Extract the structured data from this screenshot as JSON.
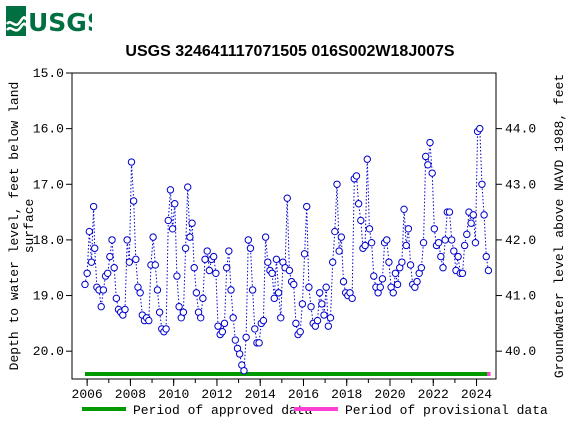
{
  "header": {
    "logo_text": "USGS",
    "title": "USGS 324641117071505 016S002W18J007S"
  },
  "colors": {
    "logo": "#006F41",
    "series": "#0000CC",
    "approved": "#009900",
    "provisional": "#FF3FD2"
  },
  "legend": {
    "approved_label": "Period of approved data",
    "provisional_label": "Period of provisional data"
  },
  "chart_data": {
    "type": "scatter",
    "title": "USGS 324641117071505 016S002W18J007S",
    "ylabel_left": [
      "Depth to water level, feet below land",
      "surface"
    ],
    "ylabel_right": "Groundwater level above NAVD 1988, feet",
    "xlim": [
      2005.3,
      2024.9
    ],
    "ylim_left": [
      20.5,
      15.0
    ],
    "left_ticks": [
      "15.0",
      "16.0",
      "17.0",
      "18.0",
      "19.0",
      "20.0"
    ],
    "right_ticks": [
      "44.0",
      "43.0",
      "42.0",
      "41.0",
      "40.0"
    ],
    "right_tick_depths": [
      16.0,
      17.0,
      18.0,
      19.0,
      20.0
    ],
    "x_ticks": [
      "2006",
      "2008",
      "2010",
      "2012",
      "2014",
      "2016",
      "2018",
      "2020",
      "2022",
      "2024"
    ],
    "grid": false,
    "approved_period": [
      2005.9,
      2024.5
    ],
    "provisional_period": [
      2024.5,
      2024.65
    ],
    "series": [
      {
        "style": "dotted line with circle markers",
        "points": [
          [
            2005.9,
            18.8
          ],
          [
            2006.0,
            18.6
          ],
          [
            2006.1,
            17.85
          ],
          [
            2006.2,
            18.4
          ],
          [
            2006.3,
            17.4
          ],
          [
            2006.35,
            18.15
          ],
          [
            2006.45,
            18.85
          ],
          [
            2006.55,
            18.9
          ],
          [
            2006.65,
            19.2
          ],
          [
            2006.75,
            18.9
          ],
          [
            2006.85,
            18.65
          ],
          [
            2006.95,
            18.6
          ],
          [
            2007.05,
            18.3
          ],
          [
            2007.15,
            18.0
          ],
          [
            2007.25,
            18.5
          ],
          [
            2007.35,
            19.05
          ],
          [
            2007.45,
            19.25
          ],
          [
            2007.55,
            19.3
          ],
          [
            2007.65,
            19.35
          ],
          [
            2007.75,
            19.25
          ],
          [
            2007.85,
            18.0
          ],
          [
            2007.95,
            18.4
          ],
          [
            2008.05,
            16.6
          ],
          [
            2008.15,
            17.3
          ],
          [
            2008.25,
            18.35
          ],
          [
            2008.35,
            18.85
          ],
          [
            2008.45,
            18.95
          ],
          [
            2008.55,
            19.35
          ],
          [
            2008.65,
            19.45
          ],
          [
            2008.75,
            19.4
          ],
          [
            2008.85,
            19.45
          ],
          [
            2008.95,
            18.45
          ],
          [
            2009.05,
            17.95
          ],
          [
            2009.15,
            18.45
          ],
          [
            2009.25,
            18.9
          ],
          [
            2009.35,
            19.3
          ],
          [
            2009.45,
            19.6
          ],
          [
            2009.55,
            19.65
          ],
          [
            2009.65,
            19.6
          ],
          [
            2009.75,
            17.65
          ],
          [
            2009.85,
            17.1
          ],
          [
            2009.95,
            17.8
          ],
          [
            2010.05,
            17.35
          ],
          [
            2010.15,
            18.65
          ],
          [
            2010.25,
            19.2
          ],
          [
            2010.35,
            19.4
          ],
          [
            2010.45,
            19.3
          ],
          [
            2010.55,
            18.15
          ],
          [
            2010.65,
            17.05
          ],
          [
            2010.75,
            17.95
          ],
          [
            2010.85,
            17.7
          ],
          [
            2010.95,
            18.5
          ],
          [
            2011.05,
            18.95
          ],
          [
            2011.15,
            19.3
          ],
          [
            2011.25,
            19.4
          ],
          [
            2011.35,
            19.05
          ],
          [
            2011.45,
            18.35
          ],
          [
            2011.55,
            18.2
          ],
          [
            2011.65,
            18.55
          ],
          [
            2011.75,
            18.35
          ],
          [
            2011.85,
            18.3
          ],
          [
            2011.95,
            18.6
          ],
          [
            2012.05,
            19.55
          ],
          [
            2012.15,
            19.7
          ],
          [
            2012.25,
            19.65
          ],
          [
            2012.35,
            19.5
          ],
          [
            2012.45,
            18.5
          ],
          [
            2012.55,
            18.2
          ],
          [
            2012.65,
            18.9
          ],
          [
            2012.75,
            19.4
          ],
          [
            2012.85,
            19.8
          ],
          [
            2012.95,
            19.95
          ],
          [
            2013.05,
            20.05
          ],
          [
            2013.15,
            20.25
          ],
          [
            2013.25,
            20.35
          ],
          [
            2013.35,
            19.75
          ],
          [
            2013.45,
            18.0
          ],
          [
            2013.55,
            18.15
          ],
          [
            2013.65,
            18.9
          ],
          [
            2013.75,
            19.6
          ],
          [
            2013.85,
            19.85
          ],
          [
            2013.95,
            19.85
          ],
          [
            2014.05,
            19.5
          ],
          [
            2014.15,
            19.45
          ],
          [
            2014.25,
            17.95
          ],
          [
            2014.35,
            18.4
          ],
          [
            2014.45,
            18.55
          ],
          [
            2014.55,
            18.6
          ],
          [
            2014.65,
            19.05
          ],
          [
            2014.75,
            18.35
          ],
          [
            2014.85,
            18.95
          ],
          [
            2014.95,
            19.4
          ],
          [
            2015.05,
            18.4
          ],
          [
            2015.15,
            18.5
          ],
          [
            2015.25,
            17.25
          ],
          [
            2015.35,
            18.55
          ],
          [
            2015.45,
            18.75
          ],
          [
            2015.55,
            18.8
          ],
          [
            2015.65,
            19.5
          ],
          [
            2015.75,
            19.7
          ],
          [
            2015.85,
            19.65
          ],
          [
            2015.95,
            19.15
          ],
          [
            2016.05,
            18.25
          ],
          [
            2016.15,
            17.4
          ],
          [
            2016.25,
            18.85
          ],
          [
            2016.35,
            19.2
          ],
          [
            2016.45,
            19.5
          ],
          [
            2016.55,
            19.55
          ],
          [
            2016.65,
            19.45
          ],
          [
            2016.75,
            18.95
          ],
          [
            2016.85,
            19.15
          ],
          [
            2016.95,
            19.35
          ],
          [
            2017.05,
            18.85
          ],
          [
            2017.15,
            19.55
          ],
          [
            2017.25,
            19.4
          ],
          [
            2017.35,
            18.4
          ],
          [
            2017.45,
            17.85
          ],
          [
            2017.55,
            17.0
          ],
          [
            2017.65,
            18.2
          ],
          [
            2017.75,
            17.95
          ],
          [
            2017.85,
            18.75
          ],
          [
            2017.95,
            18.95
          ],
          [
            2018.05,
            19.0
          ],
          [
            2018.15,
            18.95
          ],
          [
            2018.25,
            19.05
          ],
          [
            2018.35,
            16.9
          ],
          [
            2018.45,
            16.85
          ],
          [
            2018.55,
            17.35
          ],
          [
            2018.65,
            17.65
          ],
          [
            2018.75,
            18.15
          ],
          [
            2018.85,
            18.1
          ],
          [
            2018.95,
            16.55
          ],
          [
            2019.05,
            17.8
          ],
          [
            2019.15,
            18.05
          ],
          [
            2019.25,
            18.65
          ],
          [
            2019.35,
            18.85
          ],
          [
            2019.45,
            18.95
          ],
          [
            2019.55,
            18.85
          ],
          [
            2019.65,
            18.7
          ],
          [
            2019.75,
            18.05
          ],
          [
            2019.85,
            18.0
          ],
          [
            2019.95,
            18.4
          ],
          [
            2020.05,
            18.85
          ],
          [
            2020.15,
            18.95
          ],
          [
            2020.25,
            18.6
          ],
          [
            2020.35,
            18.8
          ],
          [
            2020.45,
            18.5
          ],
          [
            2020.55,
            18.4
          ],
          [
            2020.65,
            17.45
          ],
          [
            2020.75,
            18.1
          ],
          [
            2020.85,
            17.8
          ],
          [
            2020.95,
            18.45
          ],
          [
            2021.05,
            18.8
          ],
          [
            2021.15,
            18.85
          ],
          [
            2021.25,
            18.75
          ],
          [
            2021.35,
            18.6
          ],
          [
            2021.45,
            18.5
          ],
          [
            2021.55,
            18.05
          ],
          [
            2021.65,
            16.5
          ],
          [
            2021.75,
            16.65
          ],
          [
            2021.85,
            16.25
          ],
          [
            2021.95,
            16.8
          ],
          [
            2022.05,
            17.8
          ],
          [
            2022.15,
            18.1
          ],
          [
            2022.25,
            18.05
          ],
          [
            2022.35,
            18.3
          ],
          [
            2022.45,
            18.5
          ],
          [
            2022.55,
            18.0
          ],
          [
            2022.65,
            17.5
          ],
          [
            2022.75,
            17.5
          ],
          [
            2022.85,
            18.0
          ],
          [
            2022.95,
            18.2
          ],
          [
            2023.05,
            18.55
          ],
          [
            2023.15,
            18.3
          ],
          [
            2023.25,
            18.6
          ],
          [
            2023.35,
            18.6
          ],
          [
            2023.45,
            18.1
          ],
          [
            2023.55,
            17.9
          ],
          [
            2023.65,
            17.5
          ],
          [
            2023.75,
            17.7
          ],
          [
            2023.85,
            17.55
          ],
          [
            2023.95,
            18.05
          ],
          [
            2024.05,
            16.05
          ],
          [
            2024.15,
            16.0
          ],
          [
            2024.25,
            17.0
          ],
          [
            2024.35,
            17.55
          ],
          [
            2024.45,
            18.3
          ],
          [
            2024.55,
            18.55
          ]
        ]
      }
    ]
  }
}
